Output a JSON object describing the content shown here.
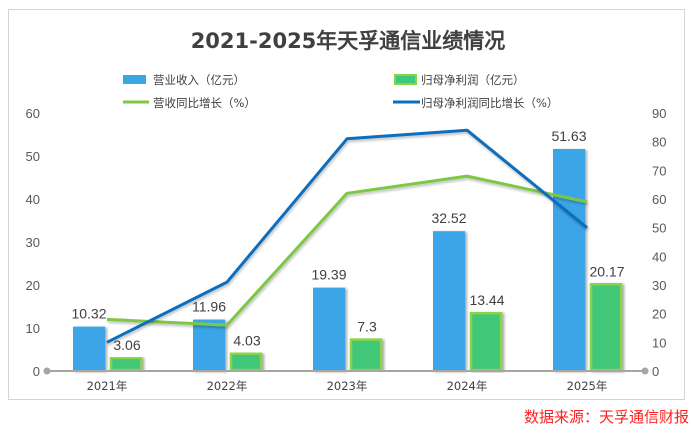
{
  "source_note": "数据来源：天孚通信财报",
  "colors": {
    "revenue_bar": "#3BA5E8",
    "profit_bar": "#3FC878",
    "profit_bar_border": "#8BD34A",
    "revenue_growth_line": "#7DC843",
    "profit_growth_line": "#0A6EBD",
    "axis": "#a6a6a6"
  },
  "chart_data": {
    "type": "bar",
    "title": "2021-2025年天孚通信业绩情况",
    "categories": [
      "2021年",
      "2022年",
      "2023年",
      "2024年",
      "2025年"
    ],
    "series": [
      {
        "name": "营业收入（亿元）",
        "type": "bar",
        "axis": "left",
        "values": [
          10.32,
          11.96,
          19.39,
          32.52,
          51.63
        ],
        "labels": [
          "10.32",
          "11.96",
          "19.39",
          "32.52",
          "51.63"
        ]
      },
      {
        "name": "归母净利润（亿元）",
        "type": "bar",
        "axis": "left",
        "values": [
          3.06,
          4.03,
          7.3,
          13.44,
          20.17
        ],
        "labels": [
          "3.06",
          "4.03",
          "7.3",
          "13.44",
          "20.17"
        ]
      },
      {
        "name": "营收同比增长（%）",
        "type": "line",
        "axis": "right",
        "values": [
          18,
          16,
          62,
          68,
          59
        ]
      },
      {
        "name": "归母净利润同比增长（%）",
        "type": "line",
        "axis": "right",
        "values": [
          10,
          31,
          81,
          84,
          50
        ]
      }
    ],
    "left_axis": {
      "ylim": [
        0,
        60
      ],
      "ticks": [
        "0",
        "10",
        "20",
        "30",
        "40",
        "50",
        "60"
      ]
    },
    "right_axis": {
      "ylim": [
        0,
        90
      ],
      "ticks": [
        "0",
        "10",
        "20",
        "30",
        "40",
        "50",
        "60",
        "70",
        "80",
        "90"
      ]
    },
    "xlabel": "",
    "ylabel": "",
    "grid": false,
    "legend_position": "top"
  }
}
